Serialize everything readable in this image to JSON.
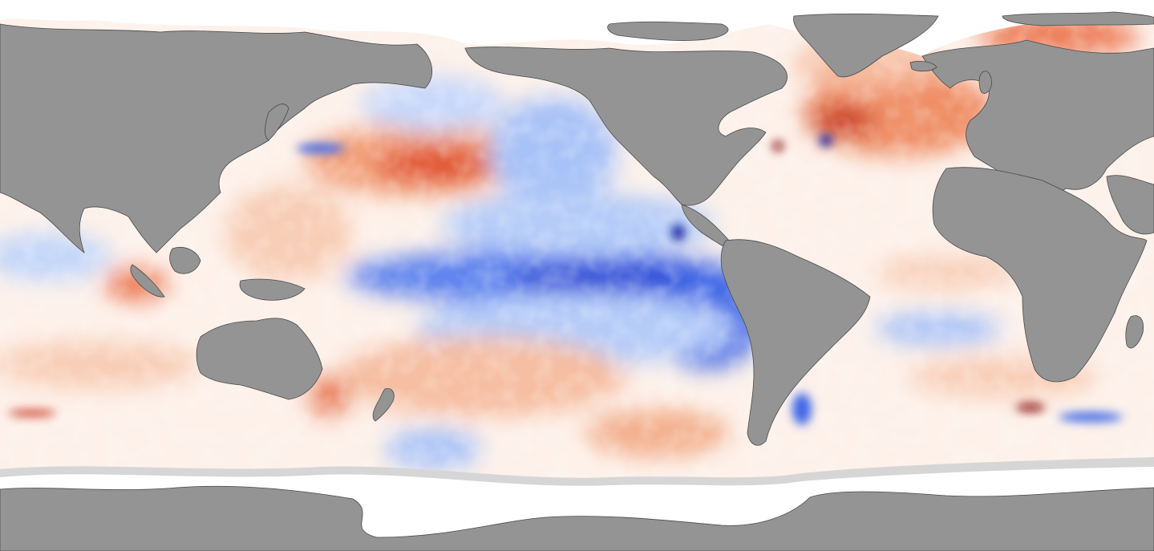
{
  "map": {
    "projection": "equirectangular",
    "background_ocean_color": "#ffffff",
    "land_color": "#949494",
    "coastline_color": "#4a4a4a",
    "sea_ice_color": "#ffffff",
    "ice_edge_color": "#d6d6d6",
    "palette": {
      "strong_cold": "#0a1f9e",
      "cold": "#2e55e6",
      "cool": "#8fb0f5",
      "slight_cool": "#d6e3fb",
      "neutral": "#ffffff",
      "slight_warm": "#fbe2d2",
      "warm": "#f2a07a",
      "hot": "#e0502a",
      "strong_hot": "#8a0d0d"
    },
    "legend": null
  }
}
